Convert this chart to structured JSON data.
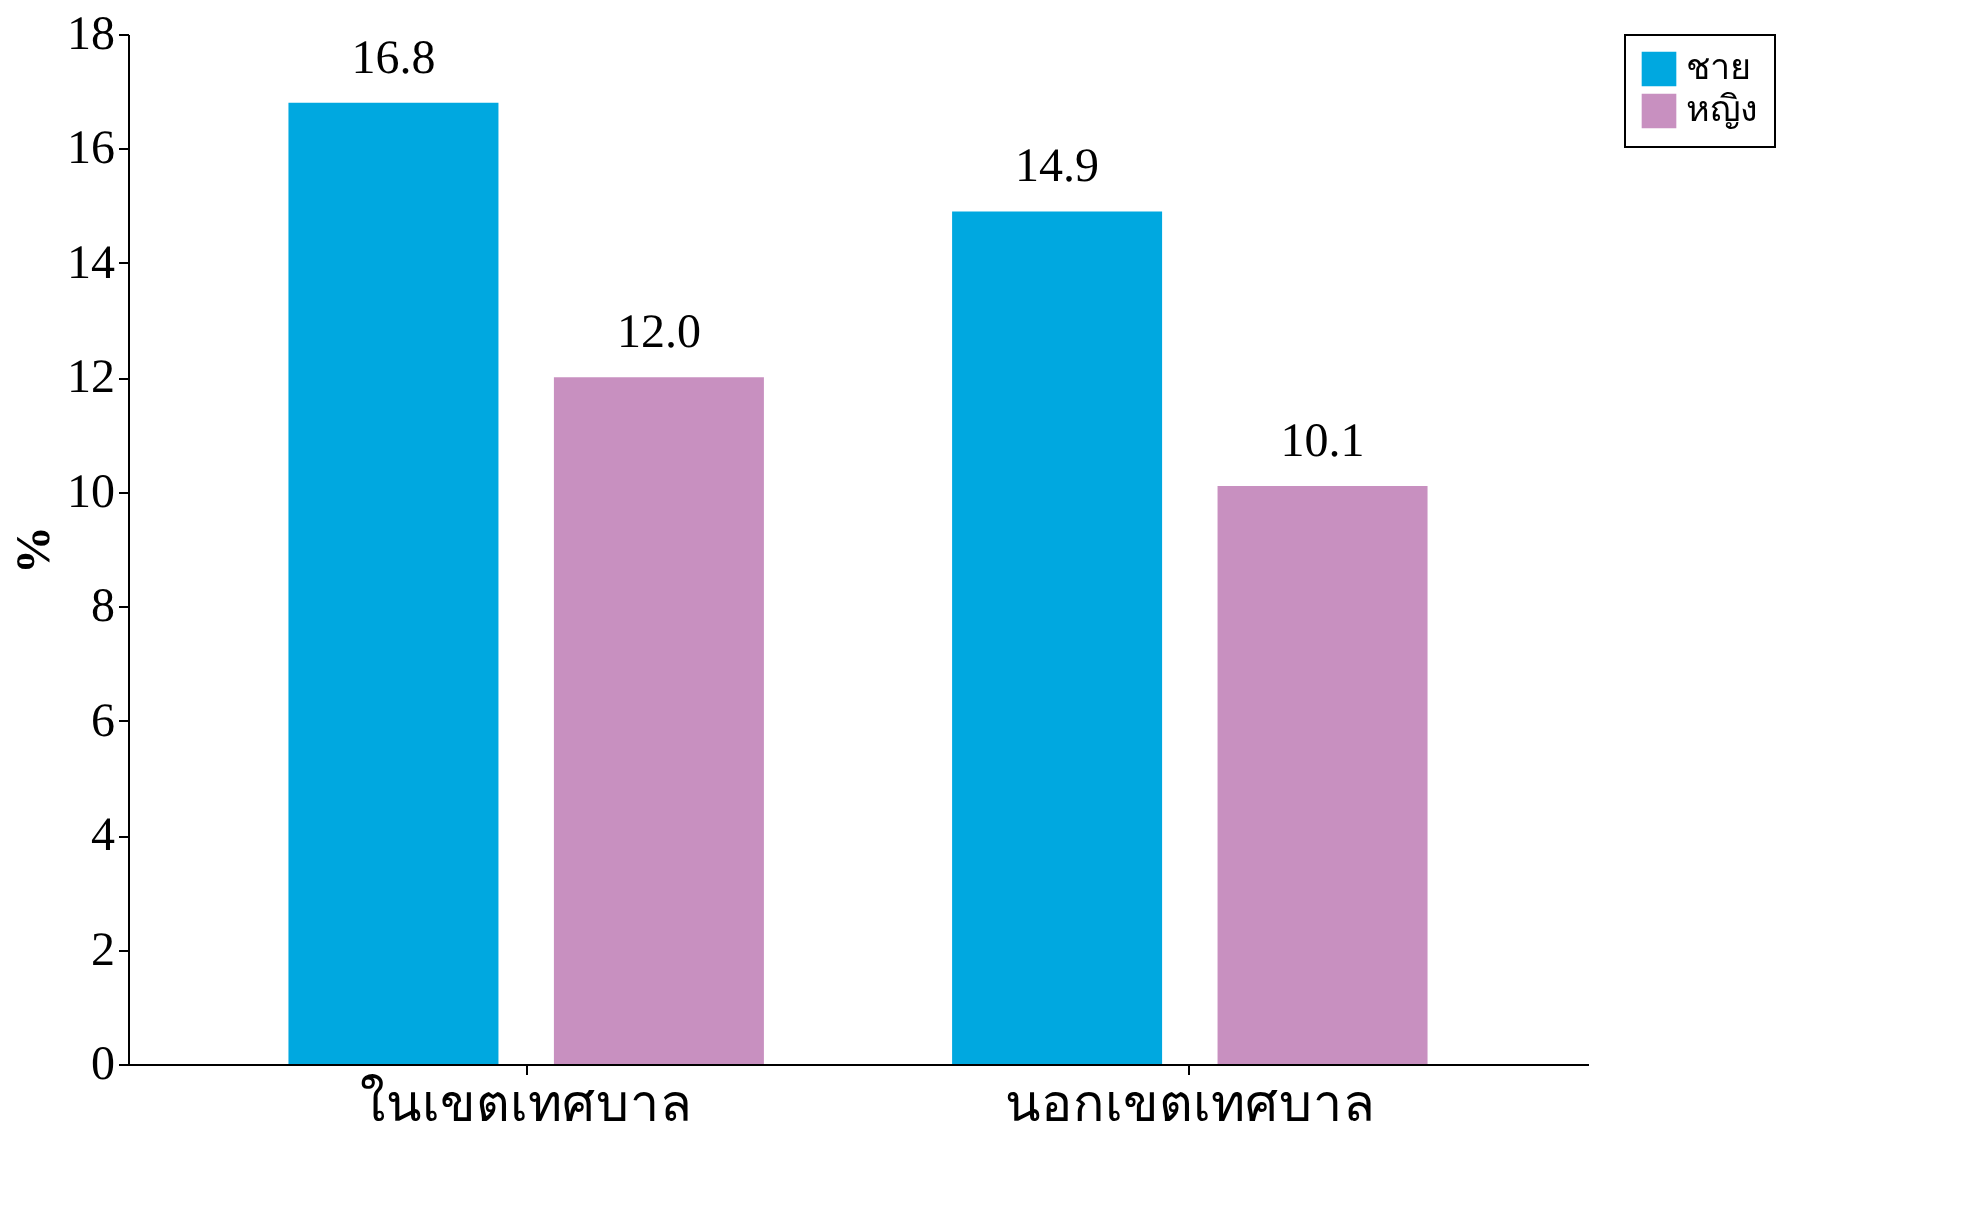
{
  "chart_data": {
    "type": "bar",
    "ylabel": "%",
    "categories": [
      "ในเขตเทศบาล",
      "นอกเขตเทศบาล"
    ],
    "series": [
      {
        "name": "ชาย",
        "color": "#00a8e0",
        "values": [
          16.8,
          14.9
        ],
        "value_labels": [
          "16.8",
          "14.9"
        ]
      },
      {
        "name": "หญิง",
        "color": "#c890c0",
        "values": [
          12.0,
          10.1
        ],
        "value_labels": [
          "12.0",
          "10.1"
        ]
      }
    ],
    "ylim": [
      0,
      18
    ],
    "yticks": [
      0,
      2,
      4,
      6,
      8,
      10,
      12,
      14,
      16,
      18
    ],
    "legend": "right",
    "grid": false
  }
}
